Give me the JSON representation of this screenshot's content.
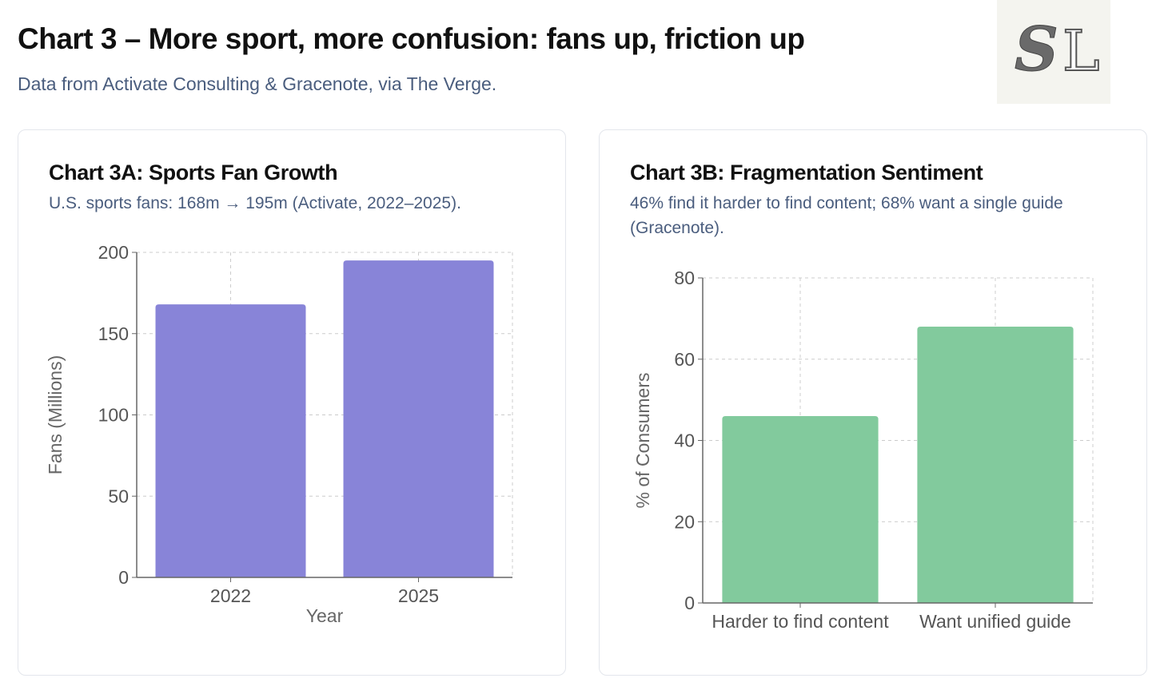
{
  "header": {
    "title": "Chart 3 – More sport, more confusion: fans up, friction up",
    "subtitle": "Data from Activate Consulting & Gracenote, via The Verge.",
    "logo_text": "SL"
  },
  "colors": {
    "purple": "#8884d8",
    "green": "#82ca9d"
  },
  "chart_data": [
    {
      "type": "bar",
      "title": "Chart 3A: Sports Fan Growth",
      "subtitle": "U.S. sports fans: 168m → 195m (Activate, 2022–2025).",
      "categories": [
        "2022",
        "2025"
      ],
      "values": [
        168,
        195
      ],
      "xlabel": "Year",
      "ylabel": "Fans (Millions)",
      "ylim": [
        0,
        200
      ],
      "yticks": [
        0,
        50,
        100,
        150,
        200
      ],
      "grid": true,
      "color": "#8884d8"
    },
    {
      "type": "bar",
      "title": "Chart 3B: Fragmentation Sentiment",
      "subtitle": "46% find it harder to find content; 68% want a single guide (Gracenote).",
      "categories": [
        "Harder to find content",
        "Want unified guide"
      ],
      "values": [
        46,
        68
      ],
      "xlabel": "",
      "ylabel": "% of Consumers",
      "ylim": [
        0,
        80
      ],
      "yticks": [
        0,
        20,
        40,
        60,
        80
      ],
      "grid": true,
      "color": "#82ca9d"
    }
  ]
}
